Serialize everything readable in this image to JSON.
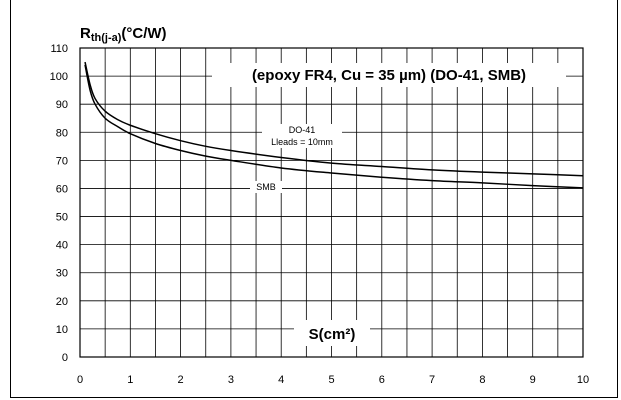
{
  "chart_data": {
    "type": "line",
    "ylabel_main": "R",
    "ylabel_sub": "th(j-a)",
    "ylabel_unit": "(°C/W)",
    "xlabel": "S(cm²)",
    "annotation": "(epoxy FR4, Cu = 35 µm) (DO-41, SMB)",
    "xlim": [
      0,
      10
    ],
    "ylim": [
      0,
      110
    ],
    "x_ticks": [
      "0",
      "1",
      "2",
      "3",
      "4",
      "5",
      "6",
      "7",
      "8",
      "9",
      "10"
    ],
    "y_ticks": [
      "0",
      "10",
      "20",
      "30",
      "40",
      "50",
      "60",
      "70",
      "80",
      "90",
      "100",
      "110"
    ],
    "grid": true,
    "series": [
      {
        "name": "DO-41",
        "label_lines": [
          "DO-41",
          "Lleads = 10mm"
        ],
        "x": [
          0.1,
          0.2,
          0.3,
          0.5,
          0.75,
          1,
          1.5,
          2,
          2.5,
          3,
          4,
          5,
          6,
          7,
          8,
          9,
          10
        ],
        "y": [
          105,
          97,
          92,
          87.5,
          84.5,
          82.5,
          79.5,
          77,
          75,
          73.5,
          71,
          69,
          67.8,
          66.6,
          65.8,
          65.2,
          64.5
        ]
      },
      {
        "name": "SMB",
        "label_lines": [
          "SMB"
        ],
        "x": [
          0.1,
          0.2,
          0.3,
          0.5,
          0.75,
          1,
          1.5,
          2,
          2.5,
          3,
          4,
          5,
          6,
          7,
          8,
          9,
          10
        ],
        "y": [
          104,
          95,
          90,
          85,
          82,
          79.5,
          76,
          73.5,
          71.5,
          70,
          67.3,
          65.5,
          64,
          62.8,
          62,
          61,
          60.2
        ]
      }
    ]
  }
}
